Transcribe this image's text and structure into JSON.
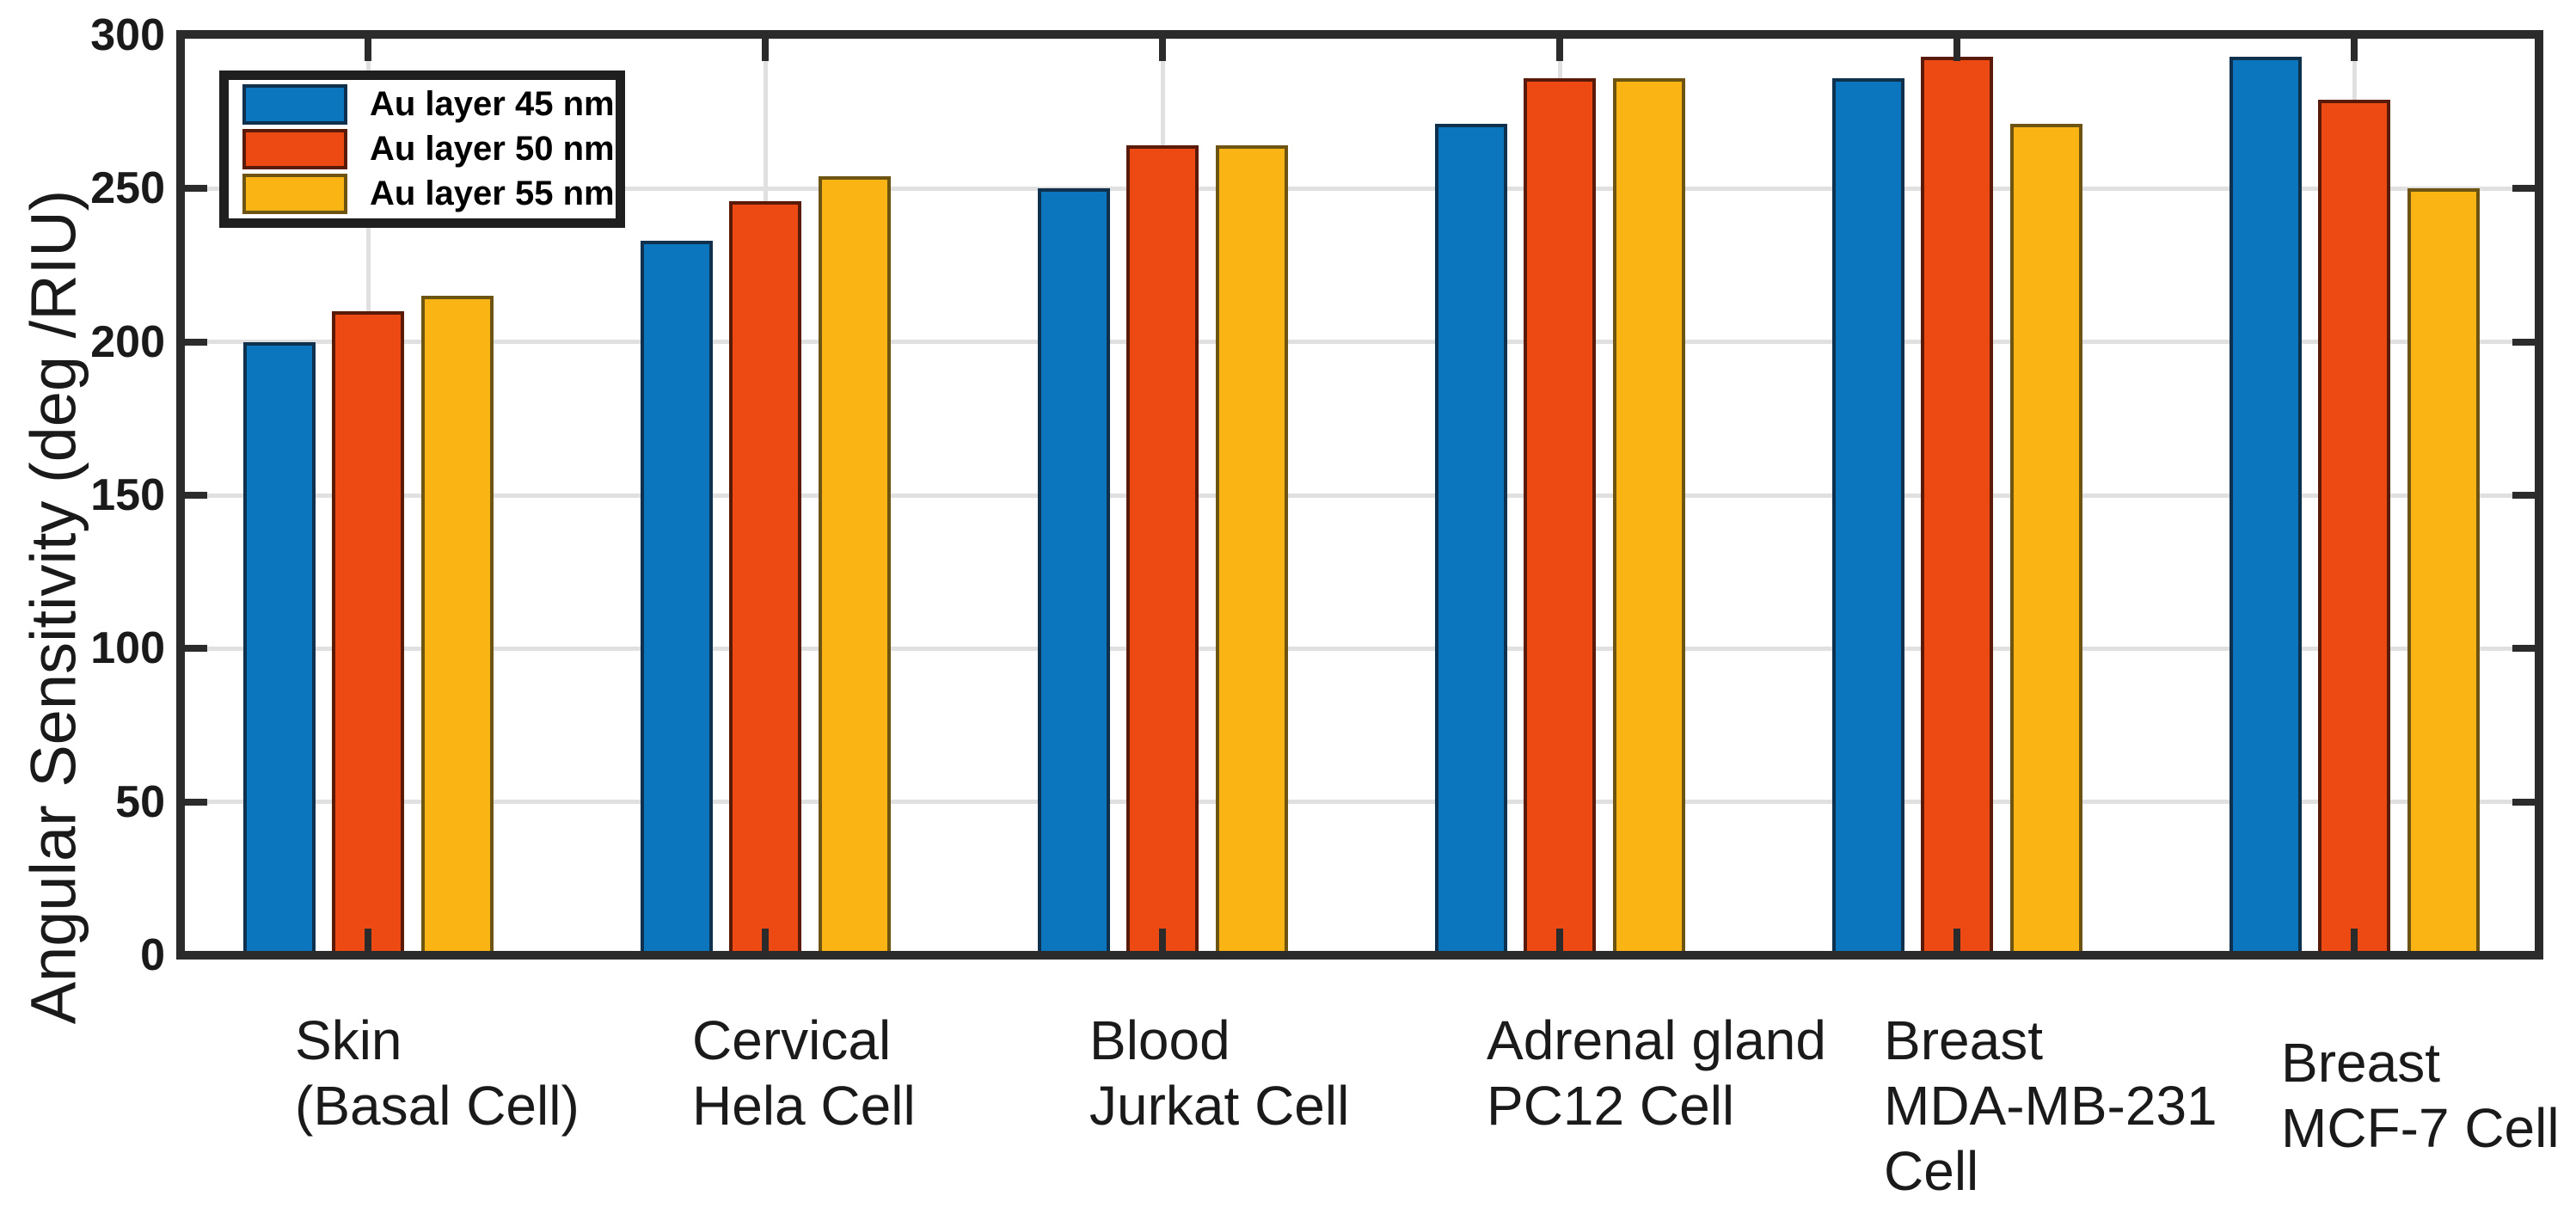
{
  "colors": {
    "background": "#ffffff",
    "frame": "#2b2b2b",
    "grid": "#e0e0e0",
    "text": "#1a1a1a",
    "legend_border": "#1f1f1f"
  },
  "chart_data": {
    "type": "bar",
    "title": "",
    "xlabel": "",
    "ylabel": "Angular Sensitivity (deg /RIU)",
    "ylim": [
      0,
      300
    ],
    "yticks": [
      0,
      50,
      100,
      150,
      200,
      250,
      300
    ],
    "grid": true,
    "legend_position": "top-left",
    "categories": [
      [
        "Skin",
        "(Basal Cell)"
      ],
      [
        "Cervical",
        "Hela Cell"
      ],
      [
        "Blood",
        "Jurkat Cell"
      ],
      [
        "Adrenal gland",
        "PC12 Cell"
      ],
      [
        "Breast",
        "MDA-MB-231",
        "Cell"
      ],
      [
        "Breast",
        "MCF-7 Cell"
      ]
    ],
    "series": [
      {
        "name": "Au layer 45 nm",
        "color": "#0b76bd",
        "edge": "#10314e",
        "values": [
          200,
          233,
          250,
          271,
          286,
          293
        ]
      },
      {
        "name": "Au layer 50 nm",
        "color": "#ed4a13",
        "edge": "#5a1a08",
        "values": [
          210,
          246,
          264,
          286,
          293,
          279
        ]
      },
      {
        "name": "Au layer 55 nm",
        "color": "#fab414",
        "edge": "#6e5413",
        "values": [
          215,
          254,
          264,
          286,
          271,
          250
        ]
      }
    ]
  }
}
